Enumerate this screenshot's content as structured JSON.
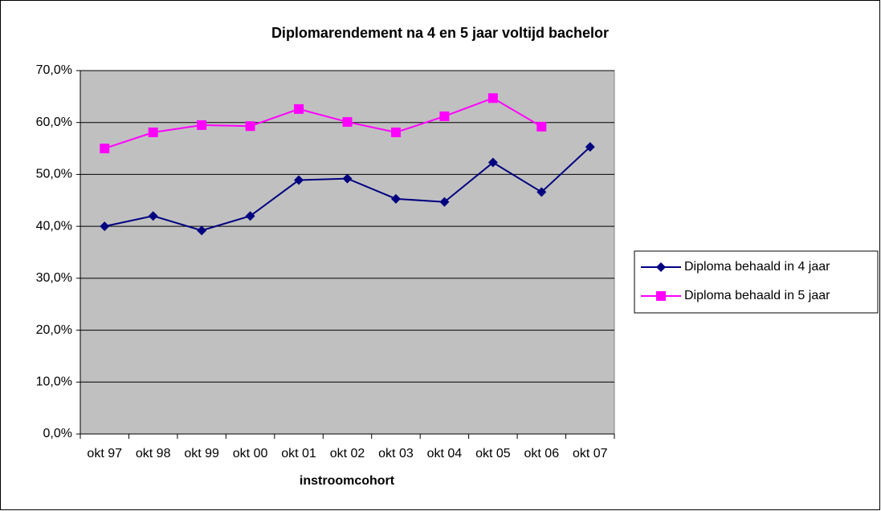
{
  "chart_data": {
    "type": "line",
    "title": "Diplomarendement na 4 en 5 jaar voltijd bachelor",
    "x_label": "instroomcohort",
    "categories": [
      "okt 97",
      "okt 98",
      "okt 99",
      "okt 00",
      "okt 01",
      "okt 02",
      "okt 03",
      "okt 04",
      "okt 05",
      "okt 06",
      "okt 07"
    ],
    "series": [
      {
        "name": "Diploma behaald in 4 jaar",
        "color": "#000080",
        "marker": "diamond",
        "values": [
          40.0,
          42.0,
          39.2,
          42.0,
          48.9,
          49.2,
          45.3,
          44.7,
          52.3,
          46.6,
          55.3
        ]
      },
      {
        "name": "Diploma behaald in 5 jaar",
        "color": "#ff00ff",
        "marker": "square",
        "values": [
          55.0,
          58.1,
          59.5,
          59.3,
          62.6,
          60.1,
          58.1,
          61.2,
          64.7,
          59.2,
          null
        ]
      }
    ],
    "ylim": [
      0,
      70
    ],
    "yticks": [
      {
        "value": 0,
        "label": "0,0%"
      },
      {
        "value": 10,
        "label": "10,0%"
      },
      {
        "value": 20,
        "label": "20,0%"
      },
      {
        "value": 30,
        "label": "30,0%"
      },
      {
        "value": 40,
        "label": "40,0%"
      },
      {
        "value": 50,
        "label": "50,0%"
      },
      {
        "value": 60,
        "label": "60,0%"
      },
      {
        "value": 70,
        "label": "70,0%"
      }
    ],
    "grid": true,
    "legend": "right"
  }
}
